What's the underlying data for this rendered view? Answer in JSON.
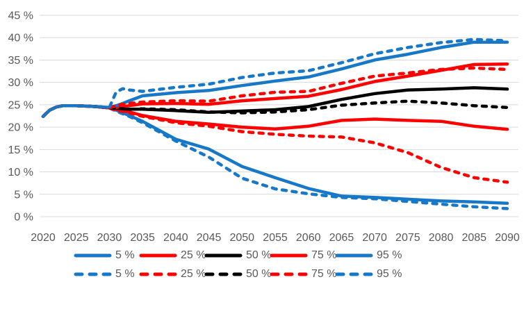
{
  "colors": {
    "blue": "#1878C8",
    "red": "#FF0000",
    "black": "#000000",
    "grid": "#D9D9D9",
    "axis_text": "#595959"
  },
  "chart_data": {
    "type": "line",
    "title": "",
    "xlabel": "",
    "ylabel": "",
    "grid": "horizontal",
    "legend_position": "bottom",
    "xlim": [
      2020,
      2090
    ],
    "ylim": [
      0,
      45
    ],
    "y_tick_suffix": " %",
    "y_ticks": [
      {
        "v": 45,
        "label": "45 %"
      },
      {
        "v": 40,
        "label": "40 %"
      },
      {
        "v": 35,
        "label": "35 %"
      },
      {
        "v": 30,
        "label": "30 %"
      },
      {
        "v": 25,
        "label": "25 %"
      },
      {
        "v": 20,
        "label": "20 %"
      },
      {
        "v": 15,
        "label": "15 %"
      },
      {
        "v": 10,
        "label": "10 %"
      },
      {
        "v": 5,
        "label": "5 %"
      },
      {
        "v": 0,
        "label": "0 %"
      }
    ],
    "x_ticks": [
      2020,
      2025,
      2030,
      2035,
      2040,
      2045,
      2050,
      2055,
      2060,
      2065,
      2070,
      2075,
      2080,
      2085,
      2090
    ],
    "x": [
      2020,
      2021,
      2022,
      2023,
      2025,
      2028,
      2030,
      2031,
      2032,
      2033,
      2035,
      2040,
      2045,
      2050,
      2055,
      2060,
      2065,
      2070,
      2075,
      2080,
      2085,
      2090
    ],
    "series": [
      {
        "name": "5 % solid",
        "color": "#1878C8",
        "style": "solid",
        "values": [
          22.4,
          23.8,
          24.5,
          24.8,
          24.8,
          24.6,
          24.3,
          23.8,
          23.2,
          22.6,
          21.3,
          17.3,
          15.1,
          11.2,
          8.7,
          6.3,
          4.6,
          4.3,
          3.9,
          3.5,
          3.3,
          3.0
        ]
      },
      {
        "name": "25 % solid",
        "color": "#FF0000",
        "style": "solid",
        "values": [
          22.4,
          23.8,
          24.5,
          24.8,
          24.8,
          24.6,
          24.3,
          24.0,
          23.7,
          23.4,
          22.6,
          21.3,
          20.7,
          20.0,
          19.6,
          20.2,
          21.5,
          21.8,
          21.5,
          21.3,
          20.2,
          19.5
        ]
      },
      {
        "name": "50 % solid",
        "color": "#000000",
        "style": "solid",
        "values": [
          22.4,
          23.8,
          24.5,
          24.8,
          24.8,
          24.6,
          24.3,
          24.2,
          24.1,
          24.0,
          24.0,
          23.7,
          23.3,
          23.6,
          23.9,
          24.6,
          26.2,
          27.5,
          28.3,
          28.5,
          28.8,
          28.5
        ]
      },
      {
        "name": "75 % solid",
        "color": "#FF0000",
        "style": "solid",
        "values": [
          22.4,
          23.8,
          24.5,
          24.8,
          24.8,
          24.6,
          24.3,
          24.4,
          24.6,
          24.8,
          25.2,
          25.3,
          25.1,
          25.9,
          26.4,
          26.9,
          28.4,
          30.2,
          31.4,
          32.7,
          34.0,
          34.1
        ]
      },
      {
        "name": "95 % solid",
        "color": "#1878C8",
        "style": "solid",
        "values": [
          22.4,
          23.8,
          24.5,
          24.8,
          24.8,
          24.6,
          24.4,
          24.8,
          25.3,
          25.9,
          27.0,
          27.7,
          28.2,
          29.3,
          30.3,
          31.2,
          33.0,
          35.0,
          36.3,
          37.8,
          39.0,
          39.0
        ]
      },
      {
        "name": "5 % dashed",
        "color": "#1878C8",
        "style": "dashed",
        "values": [
          22.4,
          23.8,
          24.5,
          24.8,
          24.8,
          24.6,
          24.3,
          23.6,
          23.0,
          22.4,
          21.0,
          16.9,
          13.3,
          8.6,
          6.2,
          5.1,
          4.3,
          4.0,
          3.4,
          2.8,
          2.2,
          1.8
        ]
      },
      {
        "name": "25 % dashed",
        "color": "#FF0000",
        "style": "dashed",
        "values": [
          22.4,
          23.8,
          24.5,
          24.8,
          24.8,
          24.6,
          24.3,
          23.8,
          23.5,
          23.2,
          22.4,
          21.0,
          20.2,
          19.0,
          18.4,
          18.0,
          17.8,
          16.5,
          14.3,
          11.0,
          8.7,
          7.7
        ]
      },
      {
        "name": "50 % dashed",
        "color": "#000000",
        "style": "dashed",
        "values": [
          22.4,
          23.8,
          24.5,
          24.8,
          24.8,
          24.6,
          24.3,
          24.2,
          24.1,
          24.0,
          24.1,
          23.9,
          23.4,
          23.2,
          23.4,
          23.9,
          24.9,
          25.4,
          25.8,
          25.4,
          24.8,
          24.4
        ]
      },
      {
        "name": "75 % dashed",
        "color": "#FF0000",
        "style": "dashed",
        "values": [
          22.4,
          23.8,
          24.5,
          24.8,
          24.8,
          24.6,
          24.3,
          24.8,
          25.1,
          25.3,
          25.6,
          25.9,
          25.8,
          27.0,
          27.8,
          28.0,
          29.8,
          31.4,
          32.1,
          32.9,
          33.2,
          32.9
        ]
      },
      {
        "name": "95 % dashed",
        "color": "#1878C8",
        "style": "dashed",
        "values": [
          22.4,
          23.8,
          24.5,
          24.8,
          24.8,
          24.6,
          24.4,
          27.8,
          28.6,
          28.3,
          28.0,
          28.9,
          29.6,
          31.1,
          32.1,
          32.6,
          34.4,
          36.4,
          37.8,
          38.9,
          39.6,
          39.3
        ]
      }
    ]
  },
  "legend": {
    "rows": [
      {
        "style": "solid",
        "items": [
          {
            "label": "5 %",
            "color": "#1878C8"
          },
          {
            "label": "25 %",
            "color": "#FF0000"
          },
          {
            "label": "50 %",
            "color": "#000000"
          },
          {
            "label": "75 %",
            "color": "#FF0000"
          },
          {
            "label": "95 %",
            "color": "#1878C8"
          }
        ]
      },
      {
        "style": "dashed",
        "items": [
          {
            "label": "5 %",
            "color": "#1878C8"
          },
          {
            "label": "25 %",
            "color": "#FF0000"
          },
          {
            "label": "50 %",
            "color": "#000000"
          },
          {
            "label": "75 %",
            "color": "#FF0000"
          },
          {
            "label": "95 %",
            "color": "#1878C8"
          }
        ]
      }
    ]
  }
}
